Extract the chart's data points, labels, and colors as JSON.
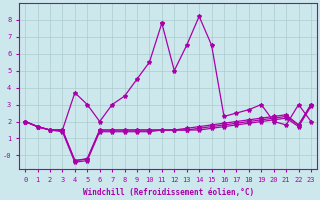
{
  "xlabel": "Windchill (Refroidissement éolien,°C)",
  "background_color": "#cce8ec",
  "grid_color": "#aacccc",
  "line_color": "#aa00aa",
  "x_values": [
    0,
    1,
    2,
    3,
    4,
    5,
    6,
    7,
    8,
    9,
    10,
    11,
    12,
    13,
    14,
    15,
    16,
    17,
    18,
    19,
    20,
    21,
    22,
    23
  ],
  "series1": [
    2.0,
    1.7,
    1.5,
    1.5,
    3.7,
    3.0,
    2.0,
    3.0,
    3.5,
    4.5,
    5.5,
    7.8,
    5.0,
    6.5,
    8.2,
    6.5,
    2.3,
    2.5,
    2.7,
    3.0,
    2.0,
    1.8,
    3.0,
    2.0
  ],
  "series2": [
    2.0,
    1.7,
    1.5,
    1.5,
    -0.3,
    -0.2,
    1.5,
    1.5,
    1.5,
    1.5,
    1.5,
    1.5,
    1.5,
    1.6,
    1.7,
    1.8,
    1.9,
    2.0,
    2.1,
    2.2,
    2.3,
    2.4,
    1.8,
    3.0
  ],
  "series3": [
    2.0,
    1.7,
    1.5,
    1.5,
    -0.3,
    -0.2,
    1.5,
    1.5,
    1.5,
    1.5,
    1.5,
    1.5,
    1.5,
    1.5,
    1.6,
    1.7,
    1.8,
    1.9,
    2.0,
    2.1,
    2.2,
    2.3,
    1.8,
    3.0
  ],
  "series4": [
    2.0,
    1.7,
    1.5,
    1.4,
    -0.4,
    -0.3,
    1.4,
    1.4,
    1.4,
    1.4,
    1.4,
    1.5,
    1.5,
    1.5,
    1.5,
    1.6,
    1.7,
    1.8,
    1.9,
    2.0,
    2.1,
    2.2,
    1.7,
    2.9
  ],
  "ylim": [
    -0.8,
    9.0
  ],
  "xlim": [
    -0.5,
    23.5
  ],
  "yticks": [
    0,
    1,
    2,
    3,
    4,
    5,
    6,
    7,
    8
  ],
  "ytick_labels": [
    "-0",
    "1",
    "2",
    "3",
    "4",
    "5",
    "6",
    "7",
    "8"
  ],
  "xticks": [
    0,
    1,
    2,
    3,
    4,
    5,
    6,
    7,
    8,
    9,
    10,
    11,
    12,
    13,
    14,
    15,
    16,
    17,
    18,
    19,
    20,
    21,
    22,
    23
  ],
  "figsize": [
    3.2,
    2.0
  ],
  "dpi": 100
}
